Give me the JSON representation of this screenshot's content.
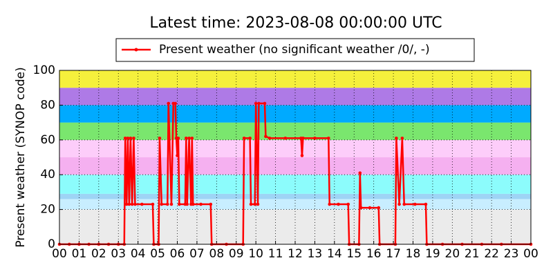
{
  "chart_data": {
    "type": "line",
    "title": "Latest time: 2023-08-08 00:00:00 UTC",
    "y_label": "Present weather (SYNOP code)",
    "grid": true,
    "legend_position": "top",
    "bands": [
      {
        "from": 0,
        "to": 20,
        "color": "#ebebeb"
      },
      {
        "from": 20,
        "to": 26,
        "color": "#c8eeff"
      },
      {
        "from": 26,
        "to": 29,
        "color": "#9ed4f5"
      },
      {
        "from": 29,
        "to": 40,
        "color": "#8cfcfc"
      },
      {
        "from": 40,
        "to": 50,
        "color": "#f5b0f0"
      },
      {
        "from": 50,
        "to": 60,
        "color": "#fdcdfa"
      },
      {
        "from": 60,
        "to": 70,
        "color": "#7ae66e"
      },
      {
        "from": 70,
        "to": 80,
        "color": "#00aaff"
      },
      {
        "from": 80,
        "to": 90,
        "color": "#ae7ae6"
      },
      {
        "from": 90,
        "to": 100,
        "color": "#f5f03c"
      }
    ],
    "xlim": [
      0,
      24
    ],
    "xticks": [
      {
        "value": 0,
        "label": "00"
      },
      {
        "value": 1,
        "label": "01"
      },
      {
        "value": 2,
        "label": "02"
      },
      {
        "value": 3,
        "label": "03"
      },
      {
        "value": 4,
        "label": "04"
      },
      {
        "value": 5,
        "label": "05"
      },
      {
        "value": 6,
        "label": "06"
      },
      {
        "value": 7,
        "label": "07"
      },
      {
        "value": 8,
        "label": "08"
      },
      {
        "value": 9,
        "label": "09"
      },
      {
        "value": 10,
        "label": "10"
      },
      {
        "value": 11,
        "label": "11"
      },
      {
        "value": 12,
        "label": "12"
      },
      {
        "value": 13,
        "label": "13"
      },
      {
        "value": 14,
        "label": "14"
      },
      {
        "value": 15,
        "label": "15"
      },
      {
        "value": 16,
        "label": "16"
      },
      {
        "value": 17,
        "label": "17"
      },
      {
        "value": 18,
        "label": "18"
      },
      {
        "value": 19,
        "label": "19"
      },
      {
        "value": 20,
        "label": "20"
      },
      {
        "value": 21,
        "label": "21"
      },
      {
        "value": 22,
        "label": "22"
      },
      {
        "value": 23,
        "label": "23"
      },
      {
        "value": 24,
        "label": "00"
      }
    ],
    "ylim": [
      0,
      100
    ],
    "yticks": [
      0,
      20,
      40,
      60,
      80,
      100
    ],
    "series": [
      {
        "name": "Present weather (no significant weather /0/, -)",
        "color": "#ff0000",
        "x": [
          0,
          0.5,
          1,
          1.5,
          2,
          2.5,
          3,
          3.3,
          3.35,
          3.42,
          3.48,
          3.55,
          3.62,
          3.7,
          3.78,
          3.85,
          4.2,
          4.75,
          4.8,
          5.05,
          5.1,
          5.2,
          5.5,
          5.55,
          5.7,
          5.8,
          5.9,
          5.95,
          6.0,
          6.05,
          6.1,
          6.4,
          6.45,
          6.5,
          6.6,
          6.7,
          6.75,
          6.8,
          7.2,
          7.7,
          7.75,
          8.5,
          9.35,
          9.4,
          9.7,
          9.75,
          9.95,
          10.0,
          10.1,
          10.15,
          10.45,
          10.5,
          10.7,
          11.5,
          12.3,
          12.35,
          12.4,
          13.0,
          13.7,
          13.75,
          14.2,
          14.7,
          14.75,
          15.25,
          15.3,
          15.35,
          15.8,
          16.25,
          16.3,
          17.1,
          17.15,
          17.3,
          17.45,
          17.55,
          18.1,
          18.65,
          18.7,
          19.5,
          20.5,
          21.5,
          22.5,
          24
        ],
        "values": [
          0,
          0,
          0,
          0,
          0,
          0,
          0,
          0,
          61,
          23,
          61,
          23,
          61,
          23,
          61,
          23,
          23,
          23,
          0,
          0,
          61,
          23,
          23,
          81,
          23,
          81,
          81,
          61,
          51,
          61,
          23,
          23,
          61,
          23,
          61,
          23,
          61,
          23,
          23,
          23,
          0,
          0,
          0,
          61,
          61,
          23,
          23,
          81,
          23,
          81,
          81,
          62,
          61,
          61,
          61,
          51,
          61,
          61,
          61,
          23,
          23,
          23,
          0,
          0,
          41,
          21,
          21,
          21,
          0,
          0,
          61,
          23,
          61,
          23,
          23,
          23,
          0,
          0,
          0,
          0,
          0,
          0
        ]
      }
    ]
  }
}
